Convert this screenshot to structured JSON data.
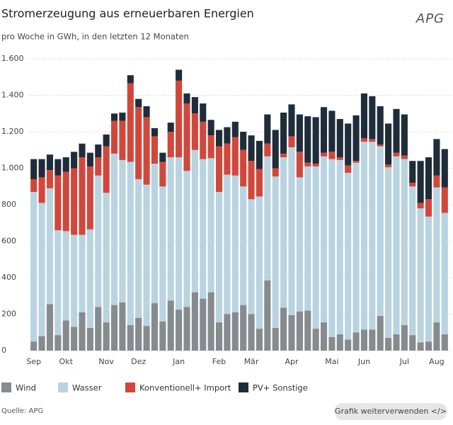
{
  "chart_data": {
    "type": "stacked_bar",
    "title": "Stromerzeugung aus erneuerbaren Energien",
    "subtitle": "pro Woche in GWh, in den letzten 12 Monaten",
    "logo": "APG",
    "source": "Quelle: APG",
    "button": "Grafik weiterverwenden </>",
    "categories": [
      "Sep",
      null,
      null,
      null,
      "Okt",
      null,
      null,
      null,
      null,
      "Nov",
      null,
      null,
      null,
      "Dez",
      null,
      null,
      null,
      null,
      "Jan",
      null,
      null,
      null,
      null,
      "Feb",
      null,
      null,
      null,
      "Mär",
      null,
      null,
      null,
      null,
      "Apr",
      null,
      null,
      null,
      null,
      "Mai",
      null,
      null,
      null,
      "Jun",
      null,
      null,
      null,
      null,
      "Jul",
      null,
      null,
      null,
      "Aug",
      null
    ],
    "series": [
      {
        "name": "Wind",
        "color": "#858b8e",
        "values": [
          50,
          80,
          255,
          85,
          165,
          130,
          210,
          125,
          240,
          155,
          250,
          265,
          140,
          180,
          135,
          260,
          160,
          275,
          225,
          240,
          320,
          285,
          320,
          155,
          200,
          210,
          250,
          200,
          120,
          385,
          125,
          235,
          195,
          215,
          220,
          120,
          155,
          75,
          90,
          60,
          100,
          115,
          115,
          190,
          70,
          90,
          140,
          85,
          45,
          50,
          155,
          90
        ]
      },
      {
        "name": "Wasser",
        "color": "#b9d3e0",
        "values": [
          820,
          730,
          635,
          575,
          490,
          505,
          425,
          540,
          720,
          710,
          830,
          780,
          895,
          760,
          775,
          765,
          740,
          785,
          835,
          745,
          780,
          765,
          735,
          715,
          765,
          750,
          650,
          630,
          725,
          680,
          830,
          825,
          920,
          735,
          790,
          890,
          910,
          975,
          955,
          915,
          930,
          1030,
          1030,
          930,
          935,
          975,
          910,
          815,
          735,
          685,
          740,
          665
        ]
      },
      {
        "name": "Konventionell+ Import",
        "color": "#d2473c",
        "values": [
          70,
          140,
          100,
          300,
          325,
          365,
          425,
          345,
          100,
          255,
          180,
          215,
          430,
          395,
          370,
          150,
          135,
          140,
          420,
          370,
          200,
          205,
          125,
          250,
          170,
          210,
          200,
          210,
          150,
          70,
          45,
          20,
          60,
          140,
          20,
          15,
          20,
          40,
          15,
          40,
          10,
          20,
          15,
          10,
          15,
          20,
          20,
          20,
          30,
          95,
          65,
          140
        ]
      },
      {
        "name": "PV+ Sonstige",
        "color": "#1f2d3a",
        "values": [
          110,
          100,
          85,
          90,
          80,
          90,
          75,
          75,
          70,
          65,
          40,
          45,
          45,
          45,
          60,
          45,
          50,
          50,
          60,
          55,
          90,
          100,
          85,
          90,
          90,
          85,
          100,
          140,
          155,
          160,
          210,
          225,
          175,
          205,
          255,
          255,
          250,
          225,
          210,
          230,
          250,
          245,
          235,
          210,
          225,
          240,
          225,
          120,
          230,
          230,
          200,
          210
        ]
      }
    ],
    "ylim": [
      0,
      1600
    ],
    "yticks": [
      0,
      200,
      400,
      600,
      800,
      {
        "value": 1000,
        "label": "1.000"
      },
      {
        "value": 1200,
        "label": "1.200"
      },
      {
        "value": 1400,
        "label": "1.400"
      },
      {
        "value": 1600,
        "label": "1.600"
      }
    ],
    "grid": true
  }
}
